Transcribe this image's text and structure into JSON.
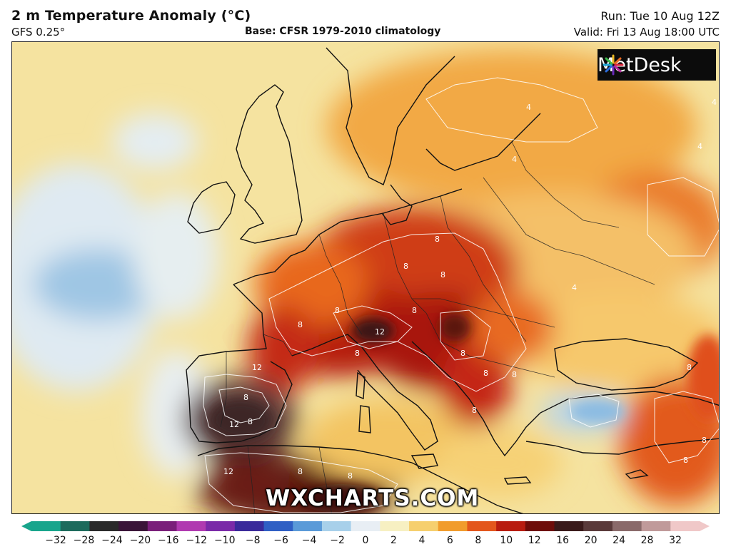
{
  "header": {
    "title": "2 m Temperature Anomaly (°C)",
    "model": "GFS 0.25°",
    "base": "Base: CFSR 1979-2010 climatology",
    "run": "Run: Tue 10 Aug 12Z",
    "valid": "Valid: Fri 13 Aug 18:00 UTC"
  },
  "logo": {
    "text": "MetDesk"
  },
  "watermark": "WXCHARTS.COM",
  "colorbar": {
    "ticks": [
      "−32",
      "−28",
      "−24",
      "−20",
      "−16",
      "−12",
      "−10",
      "−8",
      "−6",
      "−4",
      "−2",
      "0",
      "2",
      "4",
      "6",
      "8",
      "10",
      "12",
      "16",
      "20",
      "24",
      "28",
      "32"
    ],
    "colors": [
      "#18a58c",
      "#1d6b5c",
      "#2a2a2a",
      "#3a1538",
      "#7a1f7a",
      "#b03ab0",
      "#7a2aa8",
      "#3a2a9a",
      "#2f5fc4",
      "#5a9ad8",
      "#a8d0ea",
      "#e8eef4",
      "#f7f0c2",
      "#f6cf6e",
      "#f19c2c",
      "#e3561c",
      "#b81c10",
      "#6e0d0a",
      "#3a1a1a",
      "#5a3a3a",
      "#8a6a6a",
      "#c09a9a",
      "#f0c8c8"
    ]
  },
  "contour_labels": [
    "8",
    "8",
    "8",
    "8",
    "8",
    "8",
    "8",
    "8",
    "8",
    "8",
    "8",
    "12",
    "12",
    "12",
    "12",
    "8",
    "8",
    "8",
    "8",
    "8",
    "4",
    "4",
    "4",
    "4",
    "4",
    "8",
    "8"
  ]
}
